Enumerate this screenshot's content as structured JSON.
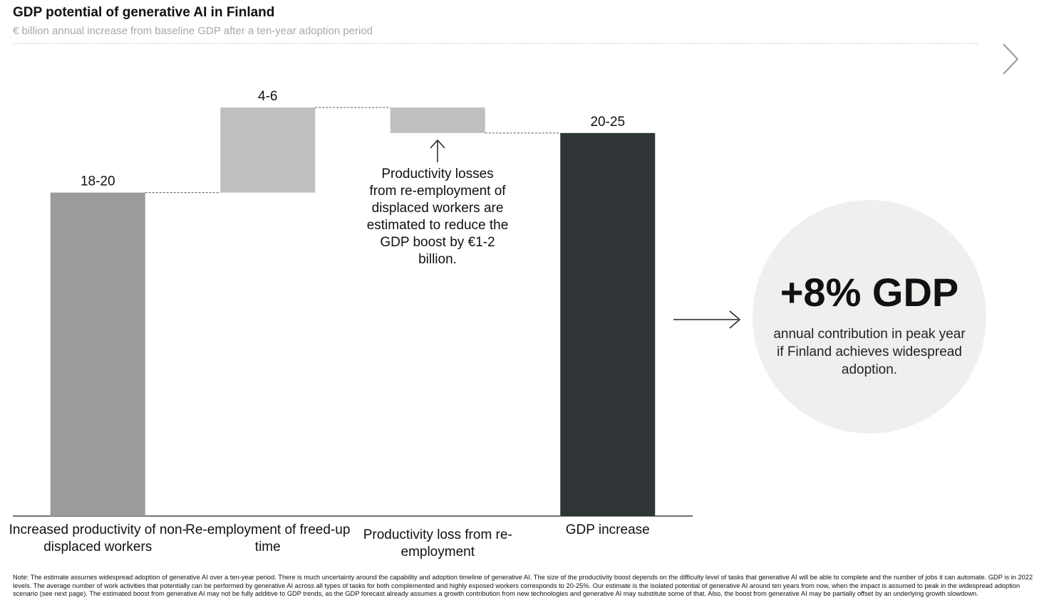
{
  "chart_data": {
    "type": "waterfall",
    "title": "GDP potential of generative AI in Finland",
    "subtitle": "€ billion annual increase from baseline GDP after a ten-year adoption period",
    "categories": [
      "Increased productivity of non-displaced workers",
      "Re-employment of freed-up time",
      "Productivity loss from re-employment",
      "GDP increase"
    ],
    "values": [
      19,
      5,
      -1.5,
      22.5
    ],
    "value_labels": [
      "18-20",
      "4-6",
      null,
      "20-25"
    ],
    "colors": [
      "#9b9b9b",
      "#bfbfbf",
      "#bfbfbf",
      "#2f3436"
    ],
    "annotation": "Productivity losses from re-employment of displaced workers are estimated to reduce the GDP boost by €1-2 billion.",
    "callout": {
      "headline": "+8% GDP",
      "text": "annual contribution in peak year if Finland achieves widespread adoption."
    },
    "note": "Note: The estimate assumes widespread adoption of generative AI over a ten-year period. There is much uncertainty around the capability and adoption timeline of generative AI. The size of the productivity boost depends on the difficulty level of tasks that generative AI will be able to complete and the number of jobs it can automate. GDP is in 2022 levels. The average number of work activities that potentially can be performed by generative AI across all types of tasks for both complemented and highly exposed workers corresponds to 20-25%. Our estimate is the isolated potential of generative AI around ten years from now, when the impact is assumed to peak in the widespread adoption scenario (see next page). The estimated boost from generative AI may not be fully additive to GDP trends, as the GDP forecast already assumes a growth contribution from new technologies and generative AI may substitute some of that. Also, the boost from generative AI may be partially offset by an underlying growth slowdown."
  }
}
